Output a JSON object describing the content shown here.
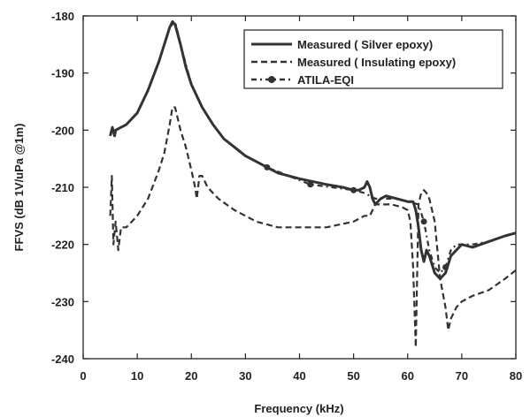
{
  "chart_data": {
    "type": "line",
    "title": "",
    "xlabel": "Frequency (kHz)",
    "ylabel": "FFVS (dB 1V/uPa @1m)",
    "xlim": [
      0,
      80
    ],
    "ylim": [
      -240,
      -180
    ],
    "xticks": [
      0,
      10,
      20,
      30,
      40,
      50,
      60,
      70,
      80
    ],
    "yticks": [
      -180,
      -190,
      -200,
      -210,
      -220,
      -230,
      -240
    ],
    "grid": false,
    "legend_position": "top-right",
    "series": [
      {
        "name": "Measured ( Silver epoxy)",
        "style": "solid",
        "color": "#333333",
        "x": [
          5,
          5.4,
          5.8,
          6,
          8,
          10,
          12,
          14,
          15,
          16,
          16.5,
          17,
          18,
          19,
          20,
          22,
          24,
          26,
          28,
          30,
          33,
          36,
          40,
          45,
          48,
          50,
          51,
          52,
          52.5,
          53,
          53.5,
          54,
          55,
          56,
          58,
          60,
          61,
          61.5,
          62,
          62.5,
          63,
          63.5,
          64,
          65,
          66,
          67,
          68,
          70,
          72,
          75,
          78,
          80
        ],
        "y": [
          -201,
          -199.5,
          -201,
          -200,
          -199,
          -197,
          -193,
          -188,
          -185,
          -182,
          -181,
          -181.5,
          -185,
          -189,
          -192,
          -196,
          -199,
          -201.5,
          -203,
          -204.5,
          -206,
          -207.5,
          -208.5,
          -209.5,
          -210,
          -210.5,
          -210.5,
          -210,
          -209,
          -210,
          -212,
          -213,
          -212,
          -211.5,
          -212,
          -212.5,
          -212.5,
          -214,
          -217,
          -221,
          -223,
          -221,
          -222,
          -225,
          -226,
          -225,
          -222,
          -220,
          -220.5,
          -219.5,
          -218.5,
          -218
        ]
      },
      {
        "name": "Measured ( Insulating epoxy)",
        "style": "dashed",
        "color": "#333333",
        "x": [
          5,
          5.3,
          5.6,
          6,
          6.5,
          7,
          8,
          10,
          12,
          14,
          15,
          16,
          16.5,
          17,
          18,
          19,
          20,
          20.7,
          21,
          21.5,
          22,
          23,
          25,
          28,
          32,
          36,
          40,
          45,
          50,
          52,
          53,
          53.5,
          54,
          55,
          57,
          59,
          60,
          60.5,
          61,
          61.5,
          62,
          62.5,
          63,
          63.5,
          64,
          64.5,
          65,
          66,
          67,
          67.5,
          68,
          69,
          70,
          72,
          75,
          78,
          80
        ],
        "y": [
          -215,
          -208,
          -220,
          -216,
          -221,
          -217,
          -217,
          -215,
          -212,
          -207,
          -204,
          -199,
          -196,
          -196,
          -200,
          -203,
          -207,
          -210,
          -212,
          -208,
          -208,
          -210,
          -212,
          -214,
          -216,
          -217,
          -217,
          -217,
          -216,
          -215,
          -215,
          -214,
          -213,
          -213,
          -213,
          -213.5,
          -214,
          -216,
          -224,
          -238,
          -213,
          -211,
          -210.5,
          -211,
          -212,
          -214,
          -216,
          -226,
          -231,
          -235,
          -233,
          -231,
          -230,
          -229,
          -228,
          -226,
          -224.5
        ]
      },
      {
        "name": "ATILA-EQI",
        "style": "dash-dot-marker",
        "color": "#333333",
        "x": [
          5,
          6,
          8,
          10,
          12,
          14,
          15,
          16,
          17,
          18,
          20,
          22,
          24,
          26,
          28,
          30,
          34,
          38,
          42,
          46,
          50,
          52,
          54,
          56,
          58,
          60,
          62,
          63,
          64,
          65,
          66,
          67,
          68,
          69,
          70,
          72,
          75,
          78,
          80
        ],
        "y": [
          -200.5,
          -200,
          -199,
          -197,
          -193,
          -188,
          -185,
          -182,
          -181,
          -185,
          -192,
          -196,
          -199,
          -201.5,
          -203,
          -204.5,
          -206.5,
          -208,
          -209.5,
          -210,
          -210.5,
          -211,
          -212,
          -212,
          -212,
          -212.5,
          -213,
          -216,
          -221,
          -224,
          -225,
          -224,
          -221,
          -220,
          -220,
          -220,
          -219.5,
          -218.5,
          -218
        ],
        "markers_x": [
          34,
          42,
          50,
          63,
          67
        ]
      }
    ]
  }
}
